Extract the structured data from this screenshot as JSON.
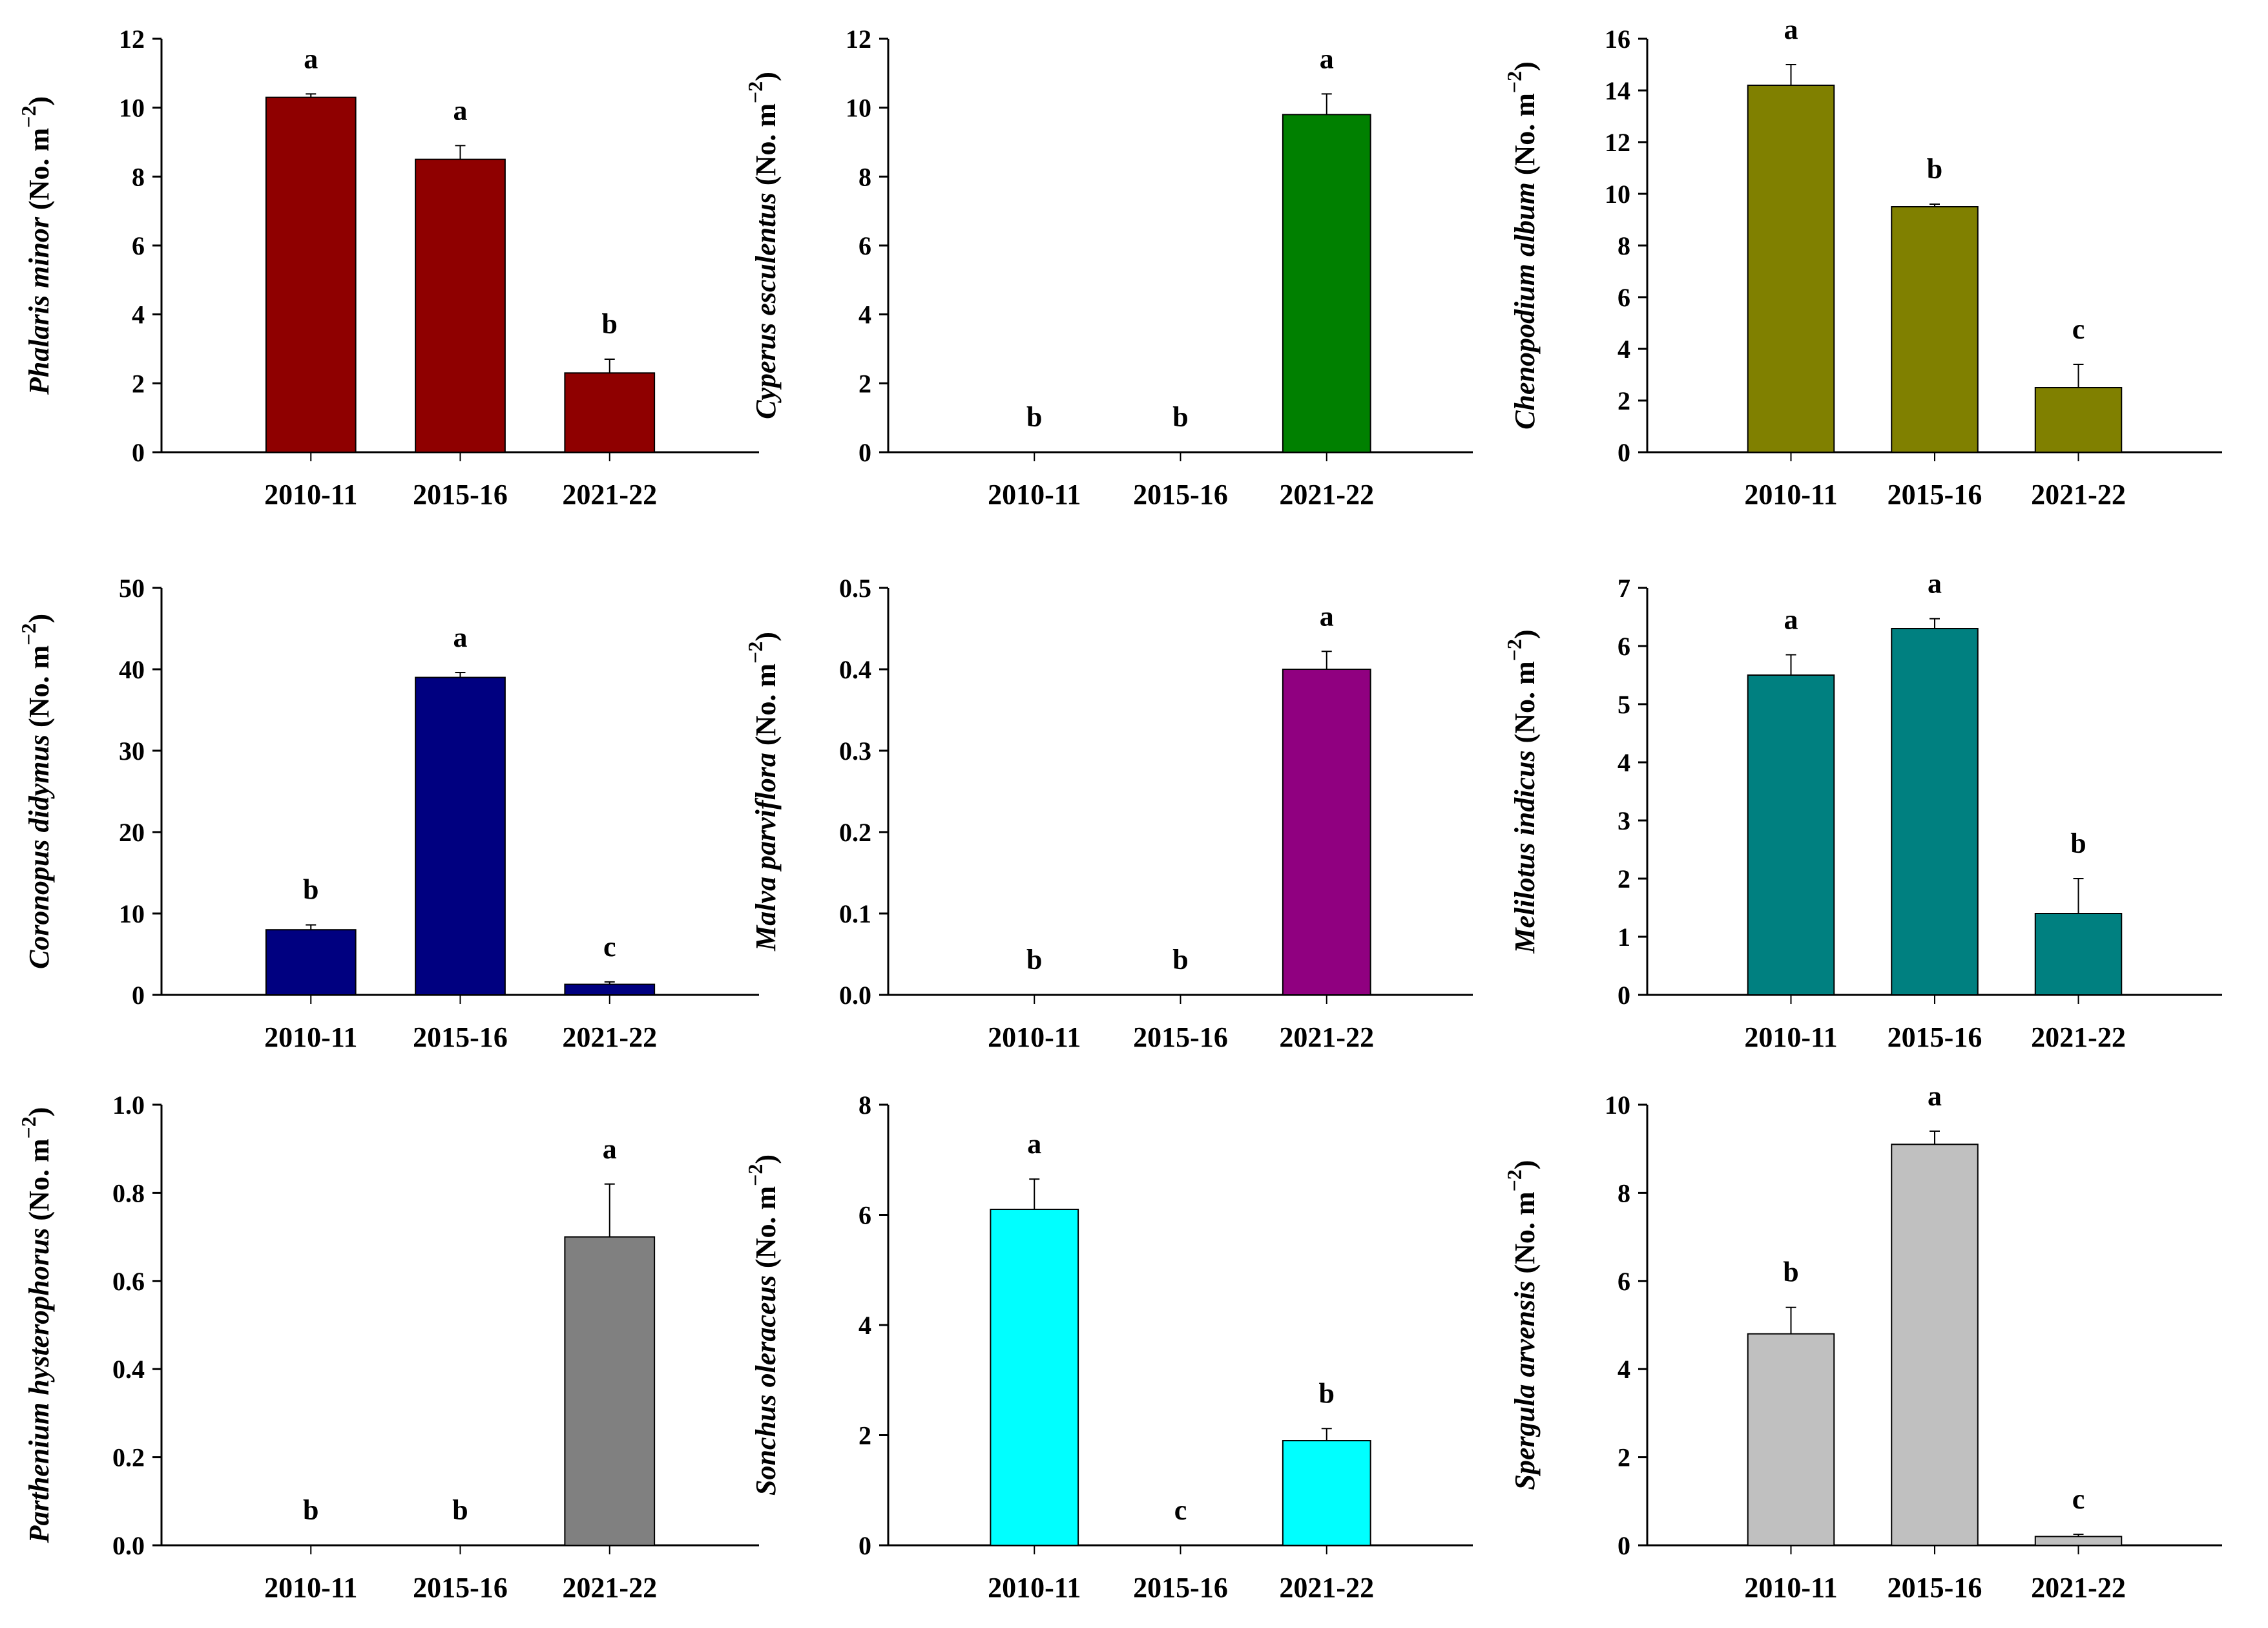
{
  "chart_data": [
    {
      "type": "bar",
      "species": "Phalaris minor",
      "unit": " (No. m",
      "exp": "−2",
      "close": ")",
      "categories": [
        "2010-11",
        "2015-16",
        "2021-22"
      ],
      "values": [
        10.3,
        8.5,
        2.3
      ],
      "errors": [
        0.1,
        0.4,
        0.4
      ],
      "letters": [
        "a",
        "a",
        "b"
      ],
      "ylim": [
        0,
        12
      ],
      "ystep": 2,
      "decimals": 0,
      "color": "#8f0000"
    },
    {
      "type": "bar",
      "species": "Cyperus esculentus",
      "unit": " (No. m",
      "exp": "−2",
      "close": ")",
      "categories": [
        "2010-11",
        "2015-16",
        "2021-22"
      ],
      "values": [
        0,
        0,
        9.8
      ],
      "errors": [
        0,
        0,
        0.6
      ],
      "letters": [
        "b",
        "b",
        "a"
      ],
      "ylim": [
        0,
        12
      ],
      "ystep": 2,
      "decimals": 0,
      "color": "#008000"
    },
    {
      "type": "bar",
      "species": "Chenopodium album",
      "unit": " (No. m",
      "exp": "−2",
      "close": ")",
      "categories": [
        "2010-11",
        "2015-16",
        "2021-22"
      ],
      "values": [
        14.2,
        9.5,
        2.5
      ],
      "errors": [
        0.8,
        0.1,
        0.9
      ],
      "letters": [
        "a",
        "b",
        "c"
      ],
      "ylim": [
        0,
        16
      ],
      "ystep": 2,
      "decimals": 0,
      "color": "#808000"
    },
    {
      "type": "bar",
      "species": "Coronopus didymus",
      "unit": " (No. m",
      "exp": "−2",
      "close": ")",
      "categories": [
        "2010-11",
        "2015-16",
        "2021-22"
      ],
      "values": [
        8,
        39,
        1.3
      ],
      "errors": [
        0.6,
        0.6,
        0.3
      ],
      "letters": [
        "b",
        "a",
        "c"
      ],
      "ylim": [
        0,
        50
      ],
      "ystep": 10,
      "decimals": 0,
      "color": "#000080"
    },
    {
      "type": "bar",
      "species": "Malva parviflora",
      "unit": " (No. m",
      "exp": "−2",
      "close": ")",
      "categories": [
        "2010-11",
        "2015-16",
        "2021-22"
      ],
      "values": [
        0,
        0,
        0.4
      ],
      "errors": [
        0,
        0,
        0.022
      ],
      "letters": [
        "b",
        "b",
        "a"
      ],
      "ylim": [
        0,
        0.5
      ],
      "ystep": 0.1,
      "decimals": 1,
      "color": "#900080"
    },
    {
      "type": "bar",
      "species": "Melilotus indicus",
      "unit": " (No. m",
      "exp": "−2",
      "close": ")",
      "categories": [
        "2010-11",
        "2015-16",
        "2021-22"
      ],
      "values": [
        5.5,
        6.3,
        1.4
      ],
      "errors": [
        0.35,
        0.17,
        0.6
      ],
      "letters": [
        "a",
        "a",
        "b"
      ],
      "ylim": [
        0,
        7
      ],
      "ystep": 1,
      "decimals": 0,
      "color": "#008080"
    },
    {
      "type": "bar",
      "species": "Parthenium hysterophorus",
      "unit": " (No. m",
      "exp": "−2",
      "close": ")",
      "categories": [
        "2010-11",
        "2015-16",
        "2021-22"
      ],
      "values": [
        0,
        0,
        0.7
      ],
      "errors": [
        0,
        0,
        0.12
      ],
      "letters": [
        "b",
        "b",
        "a"
      ],
      "ylim": [
        0,
        1.0
      ],
      "ystep": 0.2,
      "decimals": 1,
      "color": "#808080"
    },
    {
      "type": "bar",
      "species": "Sonchus oleraceus",
      "unit": " (No. m",
      "exp": "−2",
      "close": ")",
      "categories": [
        "2010-11",
        "2015-16",
        "2021-22"
      ],
      "values": [
        6.1,
        0,
        1.9
      ],
      "errors": [
        0.55,
        0,
        0.22
      ],
      "letters": [
        "a",
        "c",
        "b"
      ],
      "ylim": [
        0,
        8
      ],
      "ystep": 2,
      "decimals": 0,
      "color": "#00ffff"
    },
    {
      "type": "bar",
      "species": "Spergula arvensis",
      "unit": " (No. m",
      "exp": "−2",
      "close": ")",
      "categories": [
        "2010-11",
        "2015-16",
        "2021-22"
      ],
      "values": [
        4.8,
        9.1,
        0.2
      ],
      "errors": [
        0.6,
        0.3,
        0.05
      ],
      "letters": [
        "b",
        "a",
        "c"
      ],
      "ylim": [
        0,
        10
      ],
      "ystep": 2,
      "decimals": 0,
      "color": "#c0c0c0"
    }
  ]
}
